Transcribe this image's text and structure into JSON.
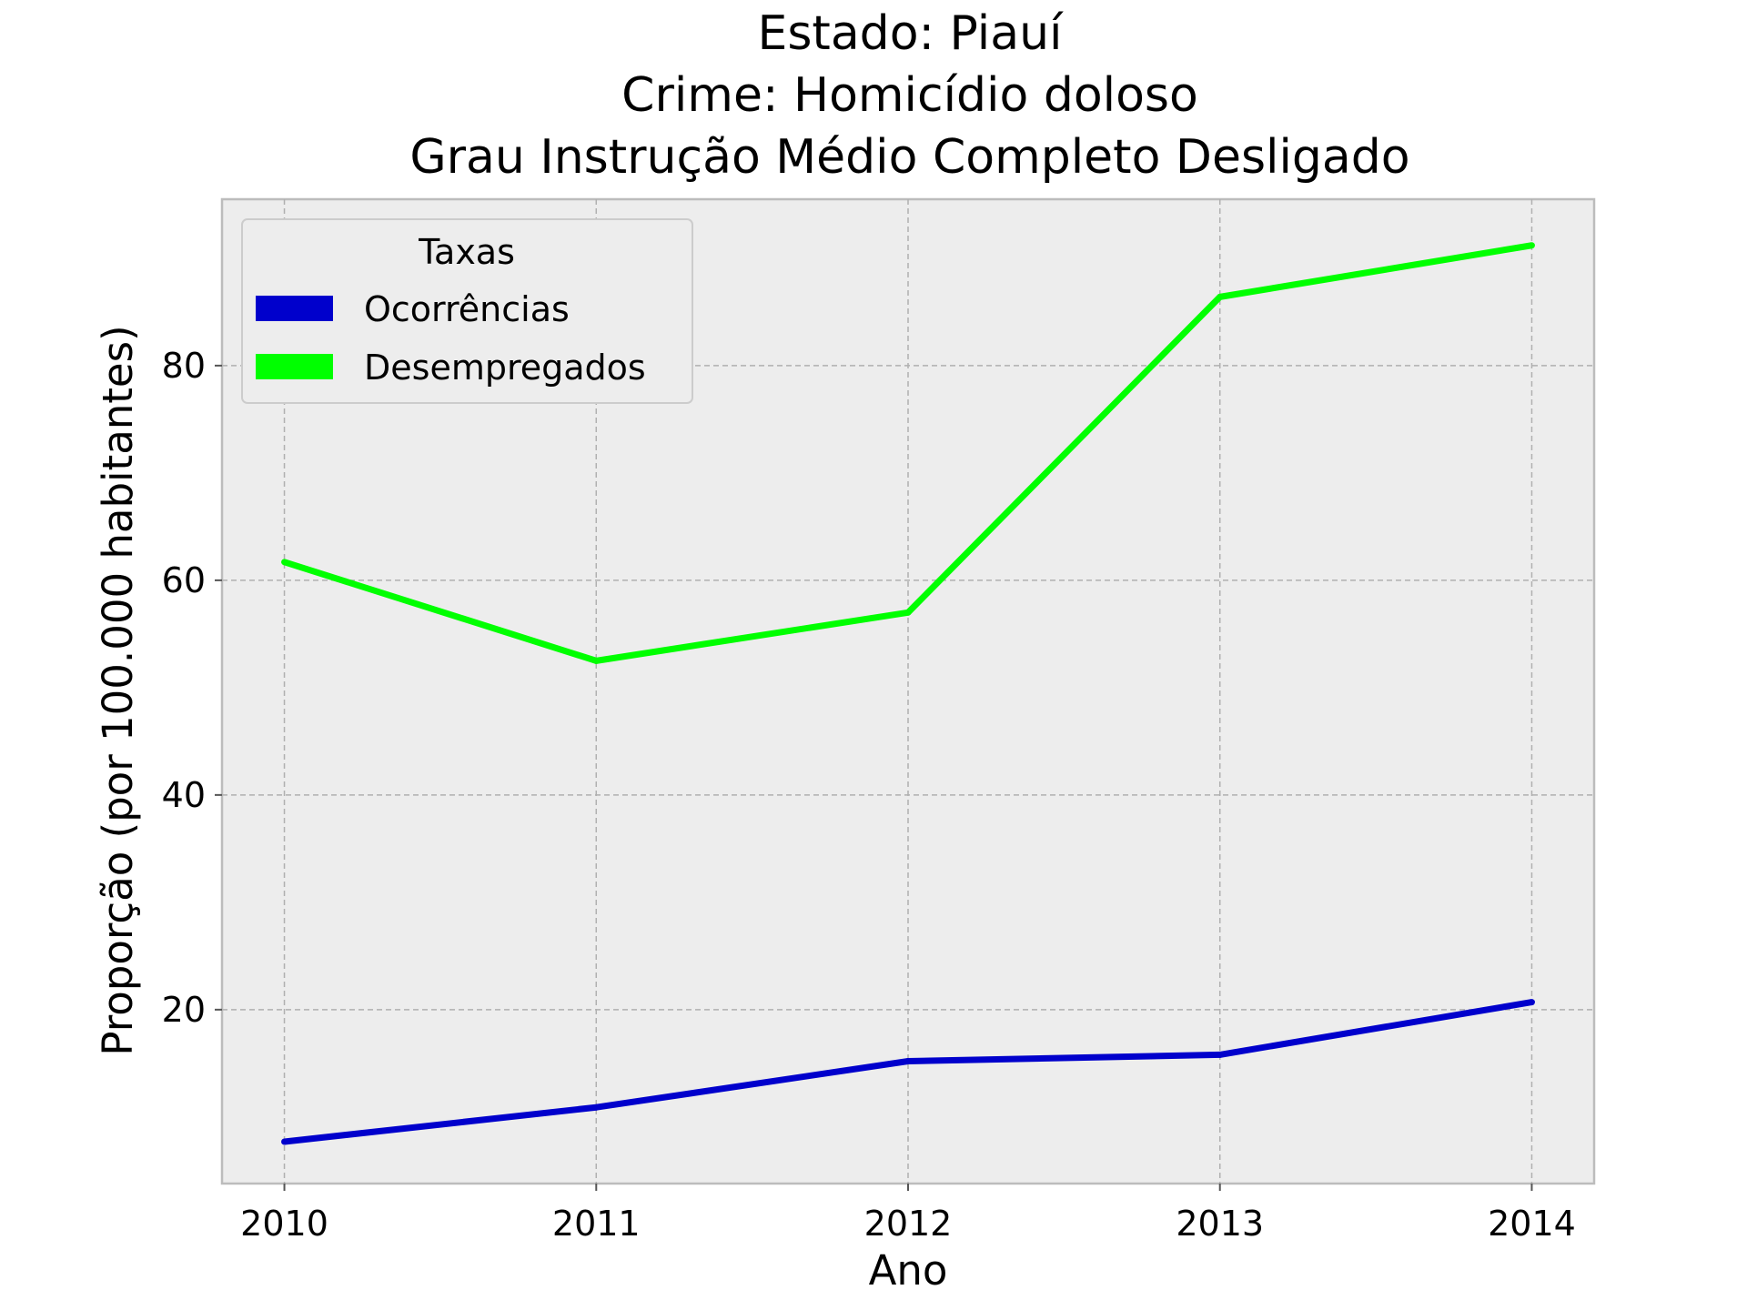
{
  "chart_data": {
    "type": "line",
    "title_lines": [
      "Estado: Piauí",
      "Crime: Homicídio doloso",
      "Grau Instrução  Médio Completo   Desligado"
    ],
    "xlabel": "Ano",
    "ylabel": "Proporção (por 100.000 habitantes)",
    "x": [
      2010,
      2011,
      2012,
      2013,
      2014
    ],
    "xlim": [
      2009.8,
      2014.2
    ],
    "ylim": [
      3.8,
      95.5
    ],
    "yticks": [
      20,
      40,
      60,
      80
    ],
    "grid": true,
    "legend": {
      "title": "Taxas",
      "placement": "top-left"
    },
    "series": [
      {
        "name": "Ocorrências",
        "color": "#0000cc",
        "values": [
          7.7,
          10.9,
          15.2,
          15.8,
          20.7
        ]
      },
      {
        "name": "Desempregados",
        "color": "#00ff00",
        "values": [
          61.7,
          52.5,
          57.0,
          86.4,
          91.2
        ]
      }
    ]
  }
}
